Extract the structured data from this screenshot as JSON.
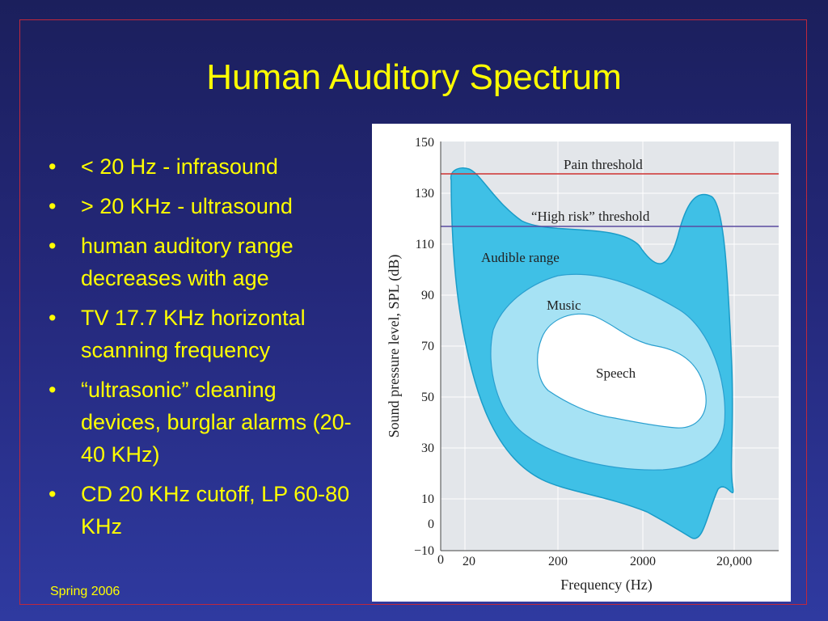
{
  "slide": {
    "title": "Human Auditory Spectrum",
    "footer": "Spring 2006",
    "bullets": [
      "< 20 Hz - infrasound",
      "> 20 KHz - ultrasound",
      "human auditory range decreases with age",
      "TV 17.7 KHz horizontal scanning frequency",
      "“ultrasonic” cleaning devices, burglar alarms (20-40 KHz)",
      "CD 20 KHz cutoff, LP 60-80 KHz"
    ],
    "bullet_symbol": "•",
    "colors": {
      "background": "#24287a",
      "text": "#ffff00",
      "frame": "#c0283c"
    }
  },
  "figure": {
    "ylabel": "Sound pressure level, SPL (dB)",
    "xlabel": "Frequency (Hz)",
    "y_ticks": [
      "150",
      "130",
      "110",
      "90",
      "70",
      "50",
      "30",
      "10",
      "0",
      "−10"
    ],
    "x_ticks": [
      "0",
      "20",
      "200",
      "2000",
      "20,000"
    ],
    "pain_label": "Pain threshold",
    "high_risk_label": "“High risk” threshold",
    "audible_label": "Audible range",
    "music_label": "Music",
    "speech_label": "Speech",
    "pain_threshold_db": 137,
    "high_risk_threshold_db": 117,
    "colors": {
      "plot_bg": "#e3e6ea",
      "audible": "#3fc0e6",
      "music": "#a6e2f4",
      "speech": "#ffffff",
      "pain_line": "#d03030",
      "risk_line": "#5a4aa0"
    }
  }
}
